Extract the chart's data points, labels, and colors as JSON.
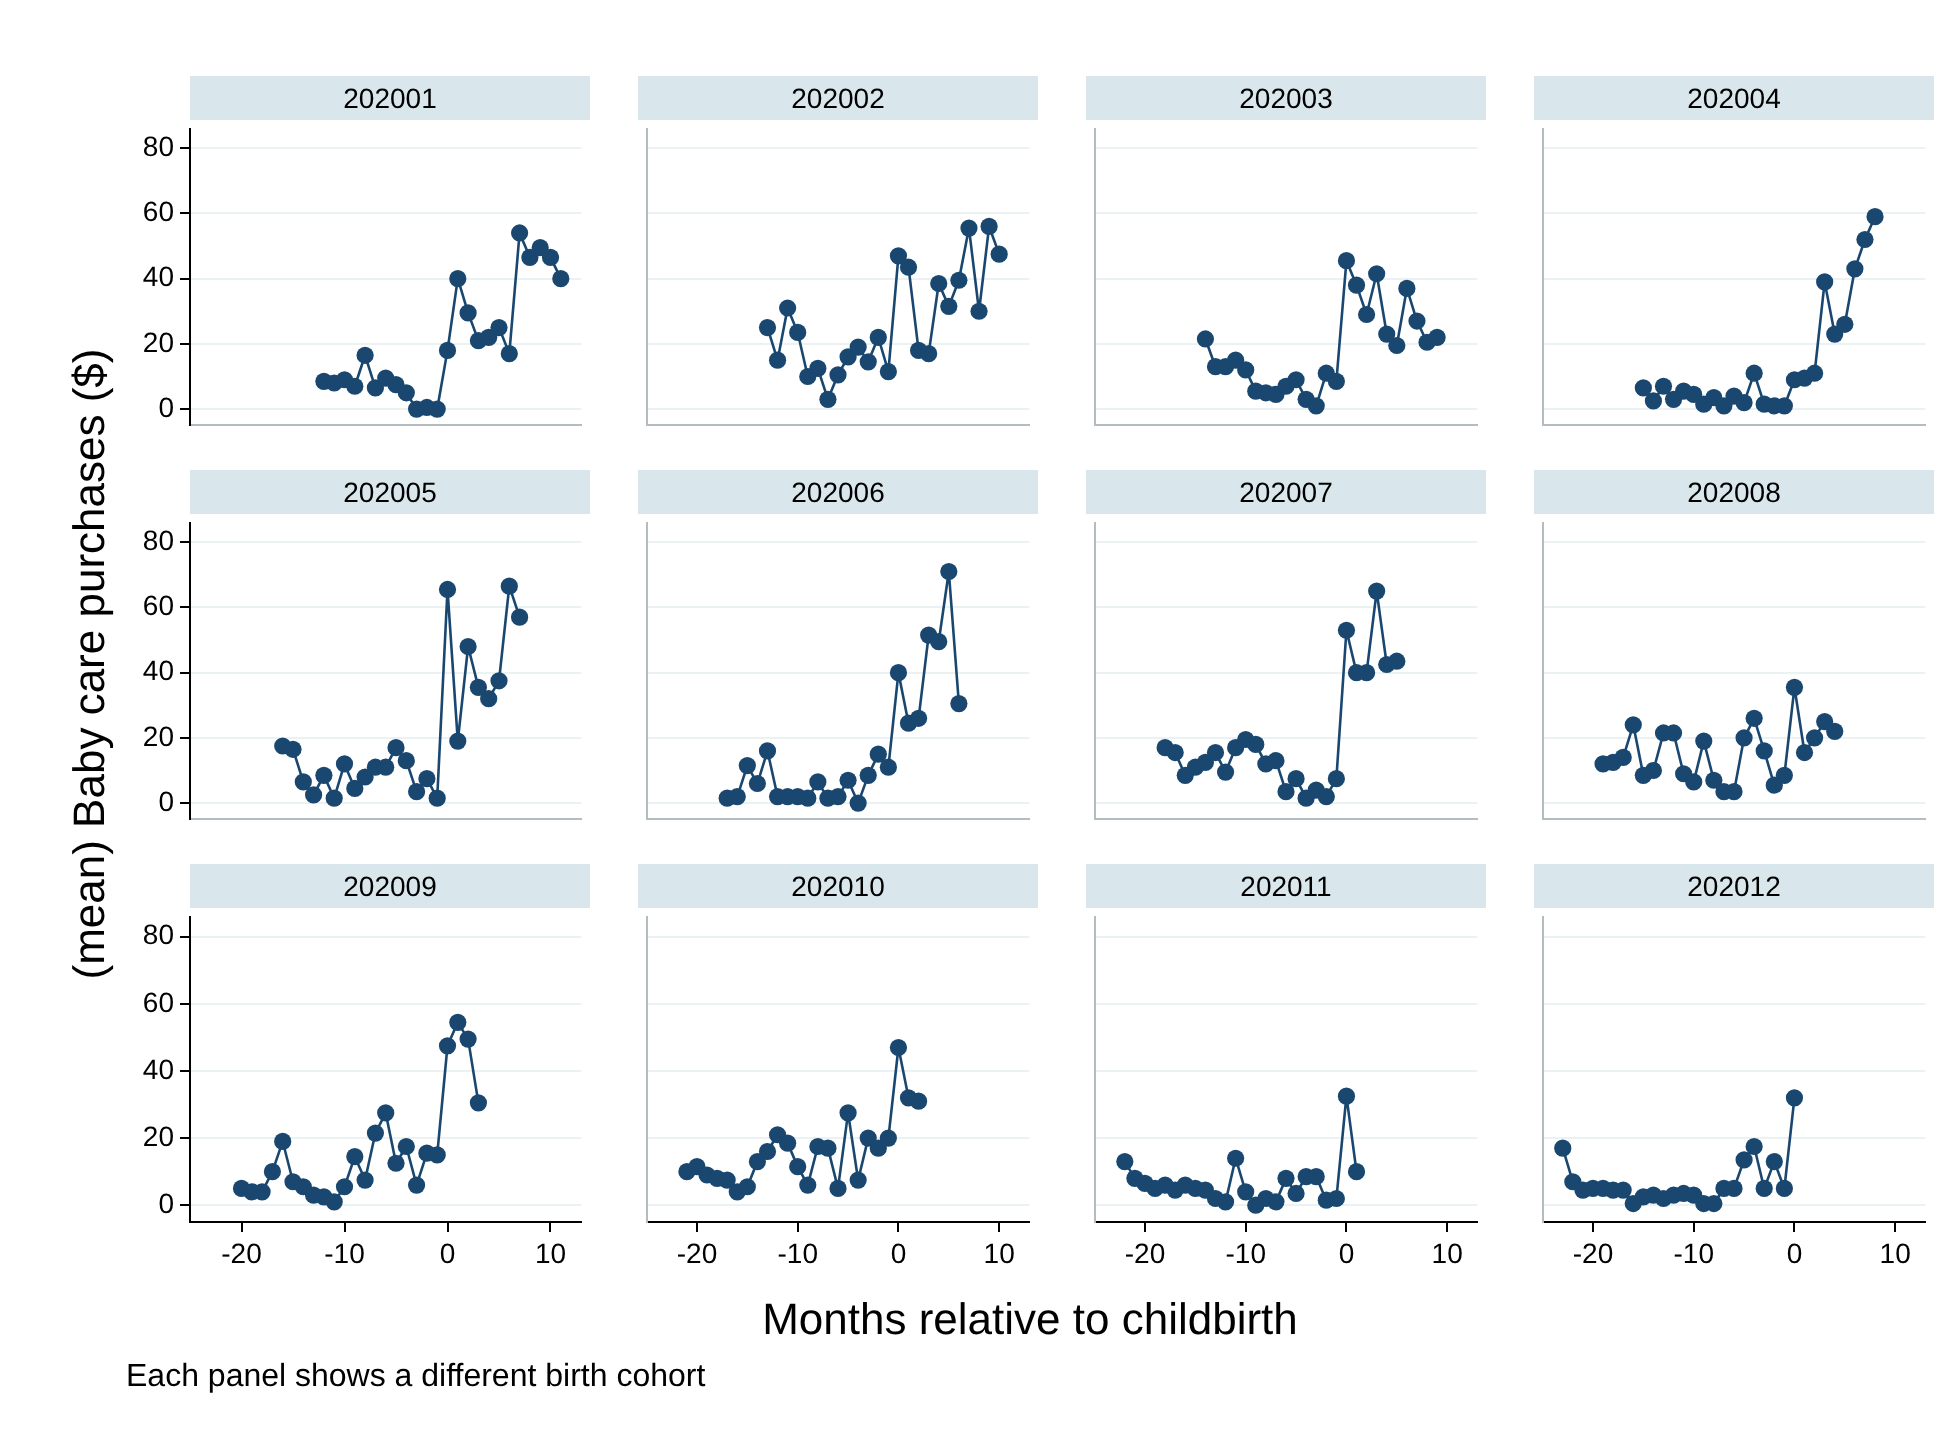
{
  "chart_data": [
    {
      "type": "line",
      "title": "202001",
      "color": "#1a476f",
      "marker": "circle",
      "grid": "y",
      "legend": false,
      "tick_labels": "y",
      "xlim": [
        -25,
        13
      ],
      "xticks": [
        -20,
        -10,
        0,
        10
      ],
      "ylim": [
        -5,
        86
      ],
      "yticks": [
        0,
        20,
        40,
        60,
        80
      ],
      "x": [
        -12,
        -11,
        -10,
        -9,
        -8,
        -7,
        -6,
        -5,
        -4,
        -3,
        -2,
        -1,
        0,
        1,
        2,
        3,
        4,
        5,
        6,
        7,
        8,
        9,
        10,
        11
      ],
      "values": [
        8.5,
        8,
        9,
        7,
        16.5,
        6.5,
        9.5,
        7.5,
        5,
        0,
        0.5,
        0,
        18,
        40,
        29.5,
        21,
        22,
        25,
        17,
        54,
        46.5,
        49.5,
        46.5,
        40
      ]
    },
    {
      "type": "line",
      "title": "202002",
      "color": "#1a476f",
      "marker": "circle",
      "grid": "y",
      "legend": false,
      "tick_labels": false,
      "xlim": [
        -25,
        13
      ],
      "xticks": [
        -20,
        -10,
        0,
        10
      ],
      "ylim": [
        -5,
        86
      ],
      "yticks": [
        0,
        20,
        40,
        60,
        80
      ],
      "x": [
        -13,
        -12,
        -11,
        -10,
        -9,
        -8,
        -7,
        -6,
        -5,
        -4,
        -3,
        -2,
        -1,
        0,
        1,
        2,
        3,
        4,
        5,
        6,
        7,
        8,
        9,
        10
      ],
      "values": [
        25,
        15,
        31,
        23.5,
        10,
        12.5,
        3,
        10.5,
        16,
        19,
        14.5,
        22,
        11.5,
        47,
        43.5,
        18,
        17,
        38.5,
        31.5,
        39.5,
        55.5,
        30,
        56,
        47.5
      ]
    },
    {
      "type": "line",
      "title": "202003",
      "color": "#1a476f",
      "marker": "circle",
      "grid": "y",
      "legend": false,
      "tick_labels": false,
      "xlim": [
        -25,
        13
      ],
      "xticks": [
        -20,
        -10,
        0,
        10
      ],
      "ylim": [
        -5,
        86
      ],
      "yticks": [
        0,
        20,
        40,
        60,
        80
      ],
      "x": [
        -14,
        -13,
        -12,
        -11,
        -10,
        -9,
        -8,
        -7,
        -6,
        -5,
        -4,
        -3,
        -2,
        -1,
        0,
        1,
        2,
        3,
        4,
        5,
        6,
        7,
        8,
        9
      ],
      "values": [
        21.5,
        13,
        13,
        15,
        12,
        5.5,
        5,
        4.5,
        7,
        9,
        3,
        1,
        11,
        8.5,
        45.5,
        38,
        29,
        41.5,
        23,
        19.5,
        37,
        27,
        20.5,
        22
      ]
    },
    {
      "type": "line",
      "title": "202004",
      "color": "#1a476f",
      "marker": "circle",
      "grid": "y",
      "legend": false,
      "tick_labels": false,
      "xlim": [
        -25,
        13
      ],
      "xticks": [
        -20,
        -10,
        0,
        10
      ],
      "ylim": [
        -5,
        86
      ],
      "yticks": [
        0,
        20,
        40,
        60,
        80
      ],
      "x": [
        -15,
        -14,
        -13,
        -12,
        -11,
        -10,
        -9,
        -8,
        -7,
        -6,
        -5,
        -4,
        -3,
        -2,
        -1,
        0,
        1,
        2,
        3,
        4,
        5,
        6,
        7,
        8
      ],
      "values": [
        6.5,
        2.5,
        7,
        3,
        5.5,
        4.5,
        1.5,
        3.5,
        1,
        4,
        2,
        11,
        1.5,
        1,
        1,
        9,
        9.5,
        11,
        39,
        23,
        26,
        43,
        52,
        59
      ]
    },
    {
      "type": "line",
      "title": "202005",
      "ylabel": "(mean) Baby care purchases ($)",
      "color": "#1a476f",
      "marker": "circle",
      "grid": "y",
      "legend": false,
      "tick_labels": "y",
      "xlim": [
        -25,
        13
      ],
      "xticks": [
        -20,
        -10,
        0,
        10
      ],
      "ylim": [
        -5,
        86
      ],
      "yticks": [
        0,
        20,
        40,
        60,
        80
      ],
      "x": [
        -16,
        -15,
        -14,
        -13,
        -12,
        -11,
        -10,
        -9,
        -8,
        -7,
        -6,
        -5,
        -4,
        -3,
        -2,
        -1,
        0,
        1,
        2,
        3,
        4,
        5,
        6,
        7
      ],
      "values": [
        17.5,
        16.5,
        6.5,
        2.5,
        8.5,
        1.5,
        12,
        4.5,
        8,
        11,
        11,
        17,
        13,
        3.5,
        7.5,
        1.5,
        65.5,
        19,
        48,
        35.5,
        32,
        37.5,
        66.5,
        57
      ]
    },
    {
      "type": "line",
      "title": "202006",
      "color": "#1a476f",
      "marker": "circle",
      "grid": "y",
      "legend": false,
      "tick_labels": false,
      "xlim": [
        -25,
        13
      ],
      "xticks": [
        -20,
        -10,
        0,
        10
      ],
      "ylim": [
        -5,
        86
      ],
      "yticks": [
        0,
        20,
        40,
        60,
        80
      ],
      "x": [
        -17,
        -16,
        -15,
        -14,
        -13,
        -12,
        -11,
        -10,
        -9,
        -8,
        -7,
        -6,
        -5,
        -4,
        -3,
        -2,
        -1,
        0,
        1,
        2,
        3,
        4,
        5,
        6
      ],
      "values": [
        1.5,
        2,
        11.5,
        6,
        16,
        2,
        2,
        2,
        1.5,
        6.5,
        1.5,
        2,
        7,
        0,
        8.5,
        15,
        11,
        40,
        24.5,
        26,
        51.5,
        49.5,
        71,
        30.5
      ]
    },
    {
      "type": "line",
      "title": "202007",
      "color": "#1a476f",
      "marker": "circle",
      "grid": "y",
      "legend": false,
      "tick_labels": false,
      "xlim": [
        -25,
        13
      ],
      "xticks": [
        -20,
        -10,
        0,
        10
      ],
      "ylim": [
        -5,
        86
      ],
      "yticks": [
        0,
        20,
        40,
        60,
        80
      ],
      "x": [
        -18,
        -17,
        -16,
        -15,
        -14,
        -13,
        -12,
        -11,
        -10,
        -9,
        -8,
        -7,
        -6,
        -5,
        -4,
        -3,
        -2,
        -1,
        0,
        1,
        2,
        3,
        4,
        5
      ],
      "values": [
        17,
        15.5,
        8.5,
        11,
        12.5,
        15.5,
        9.5,
        17,
        19.5,
        18,
        12,
        13,
        3.5,
        7.5,
        1.5,
        4,
        2,
        7.5,
        53,
        40,
        40,
        65,
        42.5,
        43.5
      ]
    },
    {
      "type": "line",
      "title": "202008",
      "color": "#1a476f",
      "marker": "circle",
      "grid": "y",
      "legend": false,
      "tick_labels": false,
      "xlim": [
        -25,
        13
      ],
      "xticks": [
        -20,
        -10,
        0,
        10
      ],
      "ylim": [
        -5,
        86
      ],
      "yticks": [
        0,
        20,
        40,
        60,
        80
      ],
      "x": [
        -19,
        -18,
        -17,
        -16,
        -15,
        -14,
        -13,
        -12,
        -11,
        -10,
        -9,
        -8,
        -7,
        -6,
        -5,
        -4,
        -3,
        -2,
        -1,
        0,
        1,
        2,
        3,
        4
      ],
      "values": [
        12,
        12.5,
        14,
        24,
        8.5,
        10,
        21.5,
        21.5,
        9,
        6.5,
        19,
        7,
        3.5,
        3.5,
        20,
        26,
        16,
        5.5,
        8.5,
        35.5,
        15.5,
        20,
        25,
        22
      ]
    },
    {
      "type": "line",
      "title": "202009",
      "xlabel": "Months relative to childbirth",
      "annotations": [
        "Each panel shows a different birth cohort"
      ],
      "color": "#1a476f",
      "marker": "circle",
      "grid": "y",
      "legend": false,
      "xlim": [
        -25,
        13
      ],
      "xticks": [
        -20,
        -10,
        0,
        10
      ],
      "ylim": [
        -5,
        86
      ],
      "yticks": [
        0,
        20,
        40,
        60,
        80
      ],
      "x": [
        -20,
        -19,
        -18,
        -17,
        -16,
        -15,
        -14,
        -13,
        -12,
        -11,
        -10,
        -9,
        -8,
        -7,
        -6,
        -5,
        -4,
        -3,
        -2,
        -1,
        0,
        1,
        2,
        3
      ],
      "values": [
        5,
        4,
        4,
        10,
        19,
        7,
        5.5,
        3,
        2.5,
        1,
        5.5,
        14.5,
        7.5,
        21.5,
        27.5,
        12.5,
        17.5,
        6,
        15.5,
        15,
        47.5,
        54.5,
        49.5,
        30.5
      ]
    },
    {
      "type": "line",
      "title": "202010",
      "color": "#1a476f",
      "marker": "circle",
      "grid": "y",
      "legend": false,
      "tick_labels": "x",
      "xlim": [
        -25,
        13
      ],
      "xticks": [
        -20,
        -10,
        0,
        10
      ],
      "ylim": [
        -5,
        86
      ],
      "yticks": [
        0,
        20,
        40,
        60,
        80
      ],
      "x": [
        -21,
        -20,
        -19,
        -18,
        -17,
        -16,
        -15,
        -14,
        -13,
        -12,
        -11,
        -10,
        -9,
        -8,
        -7,
        -6,
        -5,
        -4,
        -3,
        -2,
        -1,
        0,
        1,
        2
      ],
      "values": [
        10,
        11.5,
        9,
        8,
        7.5,
        4,
        5.5,
        13,
        16,
        21,
        18.5,
        11.5,
        6,
        17.5,
        17,
        5,
        27.5,
        7.5,
        20,
        17,
        20,
        47,
        32,
        31
      ]
    },
    {
      "type": "line",
      "title": "202011",
      "color": "#1a476f",
      "marker": "circle",
      "grid": "y",
      "legend": false,
      "tick_labels": "x",
      "xlim": [
        -25,
        13
      ],
      "xticks": [
        -20,
        -10,
        0,
        10
      ],
      "ylim": [
        -5,
        86
      ],
      "yticks": [
        0,
        20,
        40,
        60,
        80
      ],
      "x": [
        -22,
        -21,
        -20,
        -19,
        -18,
        -17,
        -16,
        -15,
        -14,
        -13,
        -12,
        -11,
        -10,
        -9,
        -8,
        -7,
        -6,
        -5,
        -4,
        -3,
        -2,
        -1,
        0,
        1
      ],
      "values": [
        13,
        8,
        6.5,
        5,
        6,
        4.5,
        6,
        5,
        4.5,
        2,
        1,
        14,
        4,
        0,
        2,
        1,
        8,
        3.5,
        8.5,
        8.5,
        1.5,
        2,
        32.5,
        10
      ]
    },
    {
      "type": "line",
      "title": "202012",
      "color": "#1a476f",
      "marker": "circle",
      "grid": "y",
      "legend": false,
      "tick_labels": "x",
      "xlim": [
        -25,
        13
      ],
      "xticks": [
        -20,
        -10,
        0,
        10
      ],
      "ylim": [
        -5,
        86
      ],
      "yticks": [
        0,
        20,
        40,
        60,
        80
      ],
      "x": [
        -23,
        -22,
        -21,
        -20,
        -19,
        -18,
        -17,
        -16,
        -15,
        -14,
        -13,
        -12,
        -11,
        -10,
        -9,
        -8,
        -7,
        -6,
        -5,
        -4,
        -3,
        -2,
        -1,
        0
      ],
      "values": [
        17,
        7,
        4.5,
        5,
        5,
        4.5,
        4.5,
        0.5,
        2.5,
        3,
        2,
        3,
        3.5,
        3,
        0.5,
        0.5,
        5,
        5,
        13.5,
        17.5,
        5,
        13,
        5,
        32
      ]
    }
  ]
}
